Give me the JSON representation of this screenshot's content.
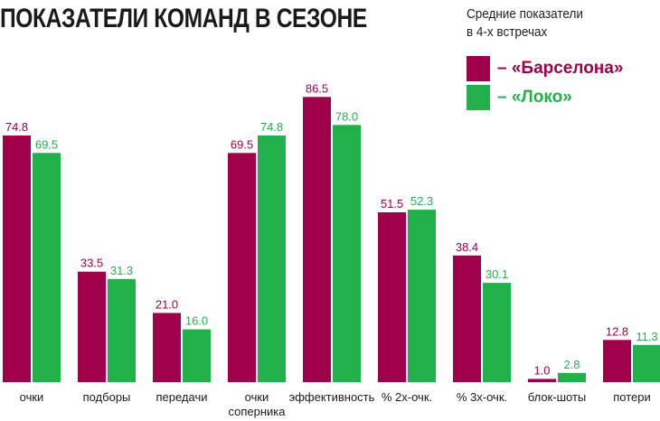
{
  "chart_data": {
    "type": "bar",
    "title": "ПОКАЗАТЕЛИ КОМАНД В СЕЗОНЕ",
    "legend_title": [
      "Средние показатели",
      "в 4-х встречах"
    ],
    "legend_placement": "top-right",
    "categories": [
      [
        "очки"
      ],
      [
        "подборы"
      ],
      [
        "передачи"
      ],
      [
        "очки",
        "соперника"
      ],
      [
        "эффективность"
      ],
      [
        "% 2х-очк."
      ],
      [
        "% 3х-очк."
      ],
      [
        "блок-шоты"
      ],
      [
        "потери"
      ]
    ],
    "series": [
      {
        "name": "– «Барселона»",
        "color": "#a0004a",
        "values": [
          74.8,
          33.5,
          21.0,
          69.5,
          86.5,
          51.5,
          38.4,
          1.0,
          12.8
        ],
        "labels": [
          "74.8",
          "33.5",
          "21.0",
          "69.5",
          "86.5",
          "51.5",
          "38.4",
          "1.0",
          "12.8"
        ]
      },
      {
        "name": "– «Локо»",
        "color": "#22b04b",
        "values": [
          69.5,
          31.3,
          16.0,
          74.8,
          78.0,
          52.3,
          30.1,
          2.8,
          11.3
        ],
        "labels": [
          "69.5",
          "31.3",
          "16.0",
          "74.8",
          "78.0",
          "52.3",
          "30.1",
          "2.8",
          "11.3"
        ]
      }
    ],
    "ylim": [
      0,
      90
    ],
    "grid": false
  }
}
